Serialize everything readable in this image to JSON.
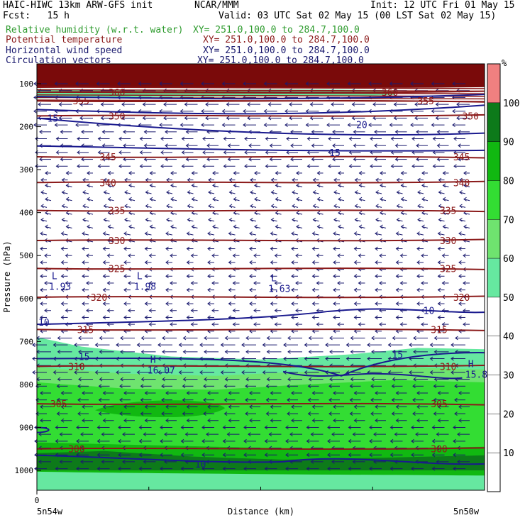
{
  "header": {
    "model": "HAIC-HIWC 13km ARW-GFS init",
    "org": "NCAR/MMM",
    "init": "Init: 12 UTC Fri 01 May 15",
    "fcst": "Fcst:   15 h",
    "valid": "Valid: 03 UTC Sat 02 May 15 (00 LST Sat 02 May 15)"
  },
  "fields": [
    {
      "name": "Relative humidity (w.r.t. water)",
      "xy": "XY= 251.0,100.0 to 284.7,100.0",
      "color": "#2e9b2e"
    },
    {
      "name": "Potential temperature",
      "xy": "XY= 251.0,100.0 to 284.7,100.0",
      "color": "#8b1a1a"
    },
    {
      "name": "Horizontal wind speed",
      "xy": "XY= 251.0,100.0 to 284.7,100.0",
      "color": "#1a1a6e"
    },
    {
      "name": "Circulation vectors",
      "xy": "XY= 251.0,100.0 to 284.7,100.0",
      "color": "#1a1a6e"
    }
  ],
  "chart_data": {
    "type": "cross-section",
    "xlabel": "Distance (km)",
    "ylabel": "Pressure (hPa)",
    "x_tick_label": "0",
    "x_left_label": "5n54w",
    "x_right_label": "5n50w",
    "y_ticks": [
      100,
      200,
      300,
      400,
      500,
      600,
      700,
      800,
      900,
      1000
    ],
    "ylim": [
      1050,
      70
    ],
    "colorbar": {
      "unit": "%",
      "ticks": [
        10,
        20,
        30,
        40,
        50,
        60,
        70,
        80,
        90,
        100
      ],
      "bands": [
        {
          "from": 0,
          "to": 50,
          "color": "#ffffff"
        },
        {
          "from": 50,
          "to": 60,
          "color": "#66e8a0"
        },
        {
          "from": 60,
          "to": 70,
          "color": "#6fe36f"
        },
        {
          "from": 70,
          "to": 80,
          "color": "#33dd33"
        },
        {
          "from": 80,
          "to": 90,
          "color": "#11b811"
        },
        {
          "from": 90,
          "to": 100,
          "color": "#0d7a1a"
        },
        {
          "from": 100,
          "to": 110,
          "color": "#f08080"
        }
      ]
    },
    "theta_contours": [
      {
        "value": 300,
        "p": 950,
        "labels": [
          [
            0.07,
            300
          ],
          [
            0.88,
            300
          ]
        ]
      },
      {
        "value": 305,
        "p": 845,
        "labels": [
          [
            0.03,
            305
          ],
          [
            0.88,
            305
          ]
        ]
      },
      {
        "value": 310,
        "p": 758,
        "labels": [
          [
            0.07,
            310
          ],
          [
            0.9,
            310
          ]
        ]
      },
      {
        "value": 315,
        "p": 672,
        "labels": [
          [
            0.09,
            315
          ],
          [
            0.88,
            315
          ]
        ]
      },
      {
        "value": 320,
        "p": 597,
        "labels": [
          [
            0.12,
            320
          ],
          [
            0.93,
            320
          ]
        ]
      },
      {
        "value": 325,
        "p": 530,
        "labels": [
          [
            0.16,
            325
          ],
          [
            0.9,
            325
          ]
        ]
      },
      {
        "value": 330,
        "p": 465,
        "labels": [
          [
            0.16,
            330
          ],
          [
            0.9,
            330
          ]
        ]
      },
      {
        "value": 335,
        "p": 395,
        "labels": [
          [
            0.16,
            335
          ],
          [
            0.9,
            335
          ]
        ]
      },
      {
        "value": 340,
        "p": 330,
        "labels": [
          [
            0.14,
            340
          ],
          [
            0.93,
            340
          ]
        ]
      },
      {
        "value": 345,
        "p": 270,
        "labels": [
          [
            0.14,
            345
          ],
          [
            0.93,
            345
          ]
        ]
      },
      {
        "value": 350,
        "p": 175,
        "labels": [
          [
            0.16,
            350
          ],
          [
            0.95,
            350
          ]
        ]
      },
      {
        "value": 355,
        "p": 140,
        "labels": [
          [
            0.08,
            355
          ],
          [
            0.85,
            355
          ]
        ]
      },
      {
        "value": 360,
        "p": 120,
        "labels": [
          [
            0.16,
            360
          ],
          [
            0.77,
            360
          ]
        ]
      }
    ],
    "wind_contours": [
      {
        "value": 10,
        "labels": [
          [
            0.0,
            10
          ],
          [
            0.86,
            10
          ],
          [
            0.35,
            10
          ]
        ]
      },
      {
        "value": 15,
        "labels": [
          [
            0.09,
            15
          ],
          [
            0.79,
            15
          ],
          [
            0.02,
            15
          ],
          [
            0.65,
            15
          ]
        ]
      },
      {
        "value": 20,
        "labels": [
          [
            0.71,
            20
          ]
        ]
      }
    ],
    "extrema": [
      {
        "type": "L",
        "value": "1.93",
        "x": 0.03,
        "p": 560
      },
      {
        "type": "L",
        "value": "1.98",
        "x": 0.22,
        "p": 560
      },
      {
        "type": "L",
        "value": "1.63",
        "x": 0.52,
        "p": 565
      },
      {
        "type": "H",
        "value": "16.07",
        "x": 0.25,
        "p": 755
      },
      {
        "type": "H",
        "value": "15.85",
        "x": 0.96,
        "p": 765
      }
    ],
    "grid": false
  }
}
